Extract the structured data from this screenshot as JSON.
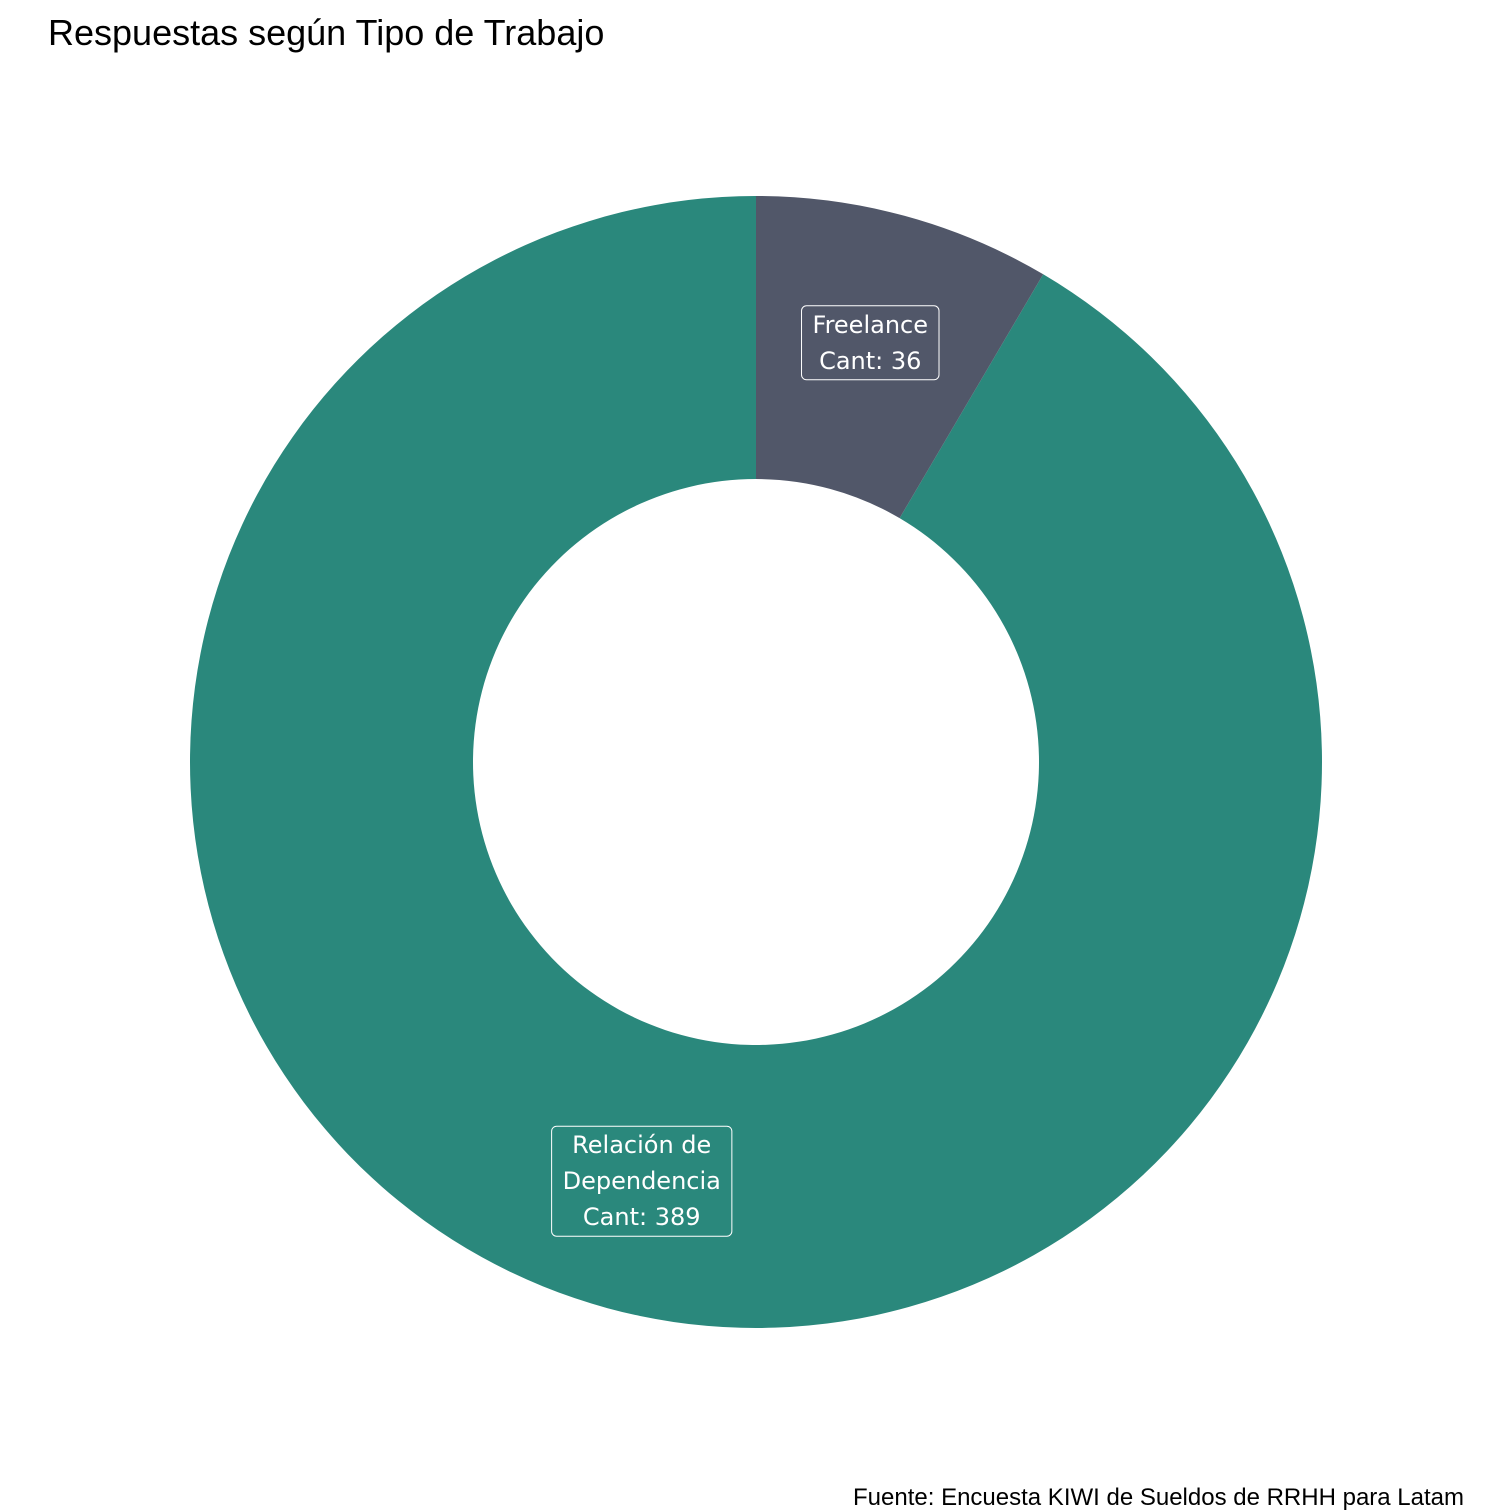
{
  "chart_data": {
    "type": "pie",
    "donut": true,
    "title": "Respuestas según Tipo de Trabajo",
    "caption": "Fuente: Encuesta KIWI de Sueldos de RRHH para Latam",
    "start": "top",
    "direction": "counterclockwise",
    "slices": [
      {
        "category": "Relación de Dependencia",
        "value": 389,
        "color": "#2a887c",
        "label_lines": [
          "Relación de",
          "Dependencia",
          "Cant: 389"
        ]
      },
      {
        "category": "Freelance",
        "value": 36,
        "color": "#515769",
        "label_lines": [
          "Freelance",
          "Cant: 36"
        ]
      }
    ]
  }
}
